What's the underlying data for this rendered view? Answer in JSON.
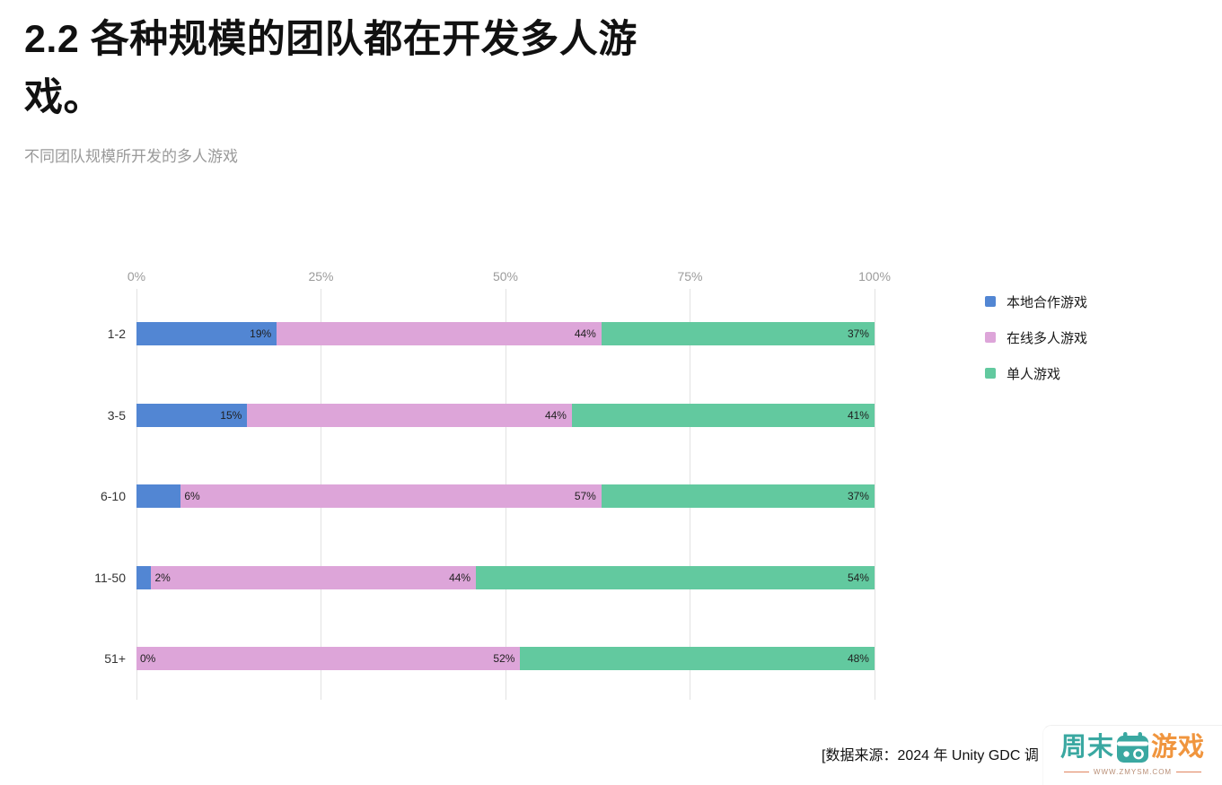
{
  "page": {
    "title_lines": [
      "2.2 各种规模的团队都在开发多人游",
      "戏。"
    ],
    "subtitle": "不同团队规模所开发的多人游戏",
    "source_text": "[数据来源：2024 年 Unity GDC 调"
  },
  "chart_data": {
    "type": "bar",
    "orientation": "horizontal",
    "stacked": true,
    "title": "2.2 各种规模的团队都在开发多人游戏。",
    "subtitle": "不同团队规模所开发的多人游戏",
    "categories": [
      "1-2",
      "3-5",
      "6-10",
      "11-50",
      "51+"
    ],
    "series": [
      {
        "name": "本地合作游戏",
        "color": "#5286d3",
        "values": [
          19,
          15,
          6,
          2,
          0
        ]
      },
      {
        "name": "在线多人游戏",
        "color": "#dda5d9",
        "values": [
          44,
          44,
          57,
          44,
          52
        ]
      },
      {
        "name": "单人游戏",
        "color": "#62c99f",
        "values": [
          37,
          41,
          37,
          54,
          48
        ]
      }
    ],
    "x_ticks": [
      "0%",
      "25%",
      "50%",
      "75%",
      "100%"
    ],
    "xlim": [
      0,
      100
    ],
    "value_label_format": "percent",
    "grid": "vertical",
    "legend_position": "right",
    "grid_color": "#e2e2e2",
    "tick_color": "#9b9b9b"
  },
  "watermark": {
    "brand_left": "周末",
    "brand_right": "游戏",
    "url": "WWW.ZMYSM.COM",
    "teal": "#3aa8a1",
    "orange": "#f0953e"
  }
}
